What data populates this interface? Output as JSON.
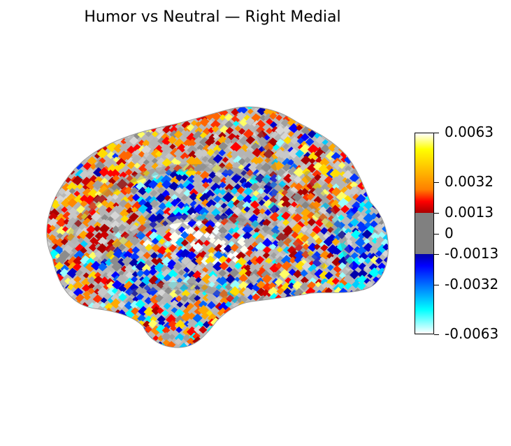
{
  "title": "Humor vs Neutral — Right Medial",
  "view": "right-medial",
  "colormap": {
    "stops": [
      "#ffffff",
      "#00ffff",
      "#0000ff",
      "#0000aa",
      "#808080",
      "#808080",
      "#aa0000",
      "#ff0000",
      "#ff7f00",
      "#ffff00",
      "#ffffff"
    ],
    "threshold_color": "#808080"
  },
  "colorbar": {
    "min": -0.0063,
    "max": 0.0063,
    "ticks": [
      {
        "value": 0.0063,
        "label": "0.0063"
      },
      {
        "value": 0.0032,
        "label": "0.0032"
      },
      {
        "value": 0.0013,
        "label": "0.0013"
      },
      {
        "value": 0,
        "label": "0"
      },
      {
        "value": -0.0013,
        "label": "-0.0013"
      },
      {
        "value": -0.0032,
        "label": "-0.0032"
      },
      {
        "value": -0.0063,
        "label": "-0.0063"
      }
    ]
  }
}
